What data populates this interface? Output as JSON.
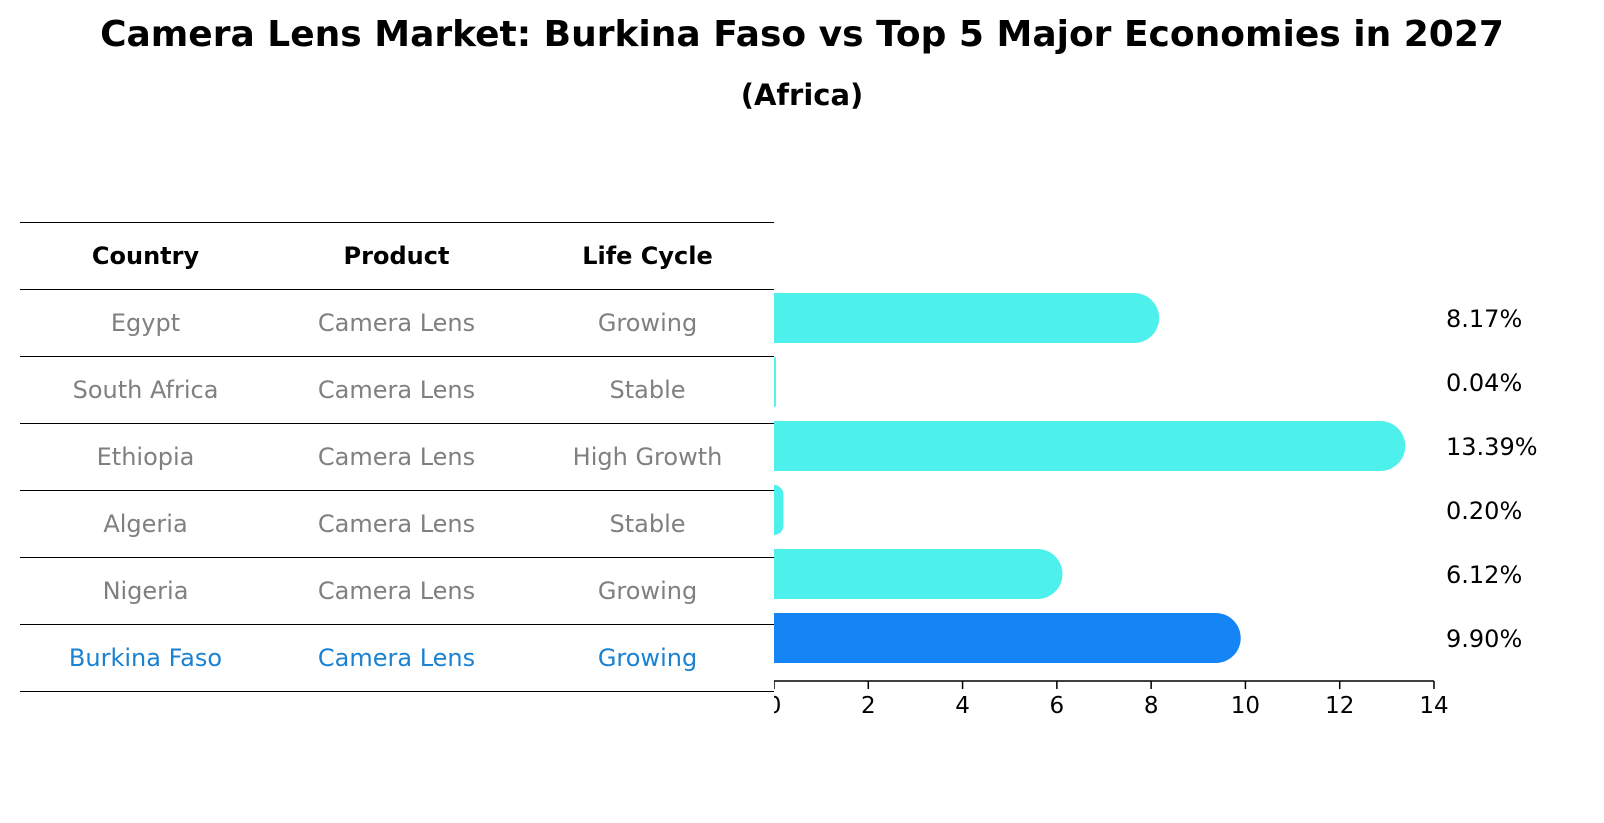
{
  "title": "Camera Lens Market: Burkina Faso vs Top 5 Major Economies in 2027",
  "subtitle": "(Africa)",
  "colors": {
    "bar": "#4ef0ec",
    "highlight": "#1584f5",
    "highlight_text": "#1a82d2",
    "muted_text": "#808080"
  },
  "table": {
    "headers": [
      "Country",
      "Product",
      "Life Cycle"
    ],
    "rows": [
      {
        "country": "Egypt",
        "product": "Camera Lens",
        "life_cycle": "Growing"
      },
      {
        "country": "South Africa",
        "product": "Camera Lens",
        "life_cycle": "Stable"
      },
      {
        "country": "Ethiopia",
        "product": "Camera Lens",
        "life_cycle": "High Growth"
      },
      {
        "country": "Algeria",
        "product": "Camera Lens",
        "life_cycle": "Stable"
      },
      {
        "country": "Nigeria",
        "product": "Camera Lens",
        "life_cycle": "Growing"
      },
      {
        "country": "Burkina Faso",
        "product": "Camera Lens",
        "life_cycle": "Growing",
        "highlight": true
      }
    ]
  },
  "chart_data": {
    "type": "bar",
    "orientation": "horizontal",
    "categories": [
      "Egypt",
      "South Africa",
      "Ethiopia",
      "Algeria",
      "Nigeria",
      "Burkina Faso"
    ],
    "values": [
      8.17,
      0.04,
      13.39,
      0.2,
      6.12,
      9.9
    ],
    "value_labels": [
      "8.17%",
      "0.04%",
      "13.39%",
      "0.20%",
      "6.12%",
      "9.90%"
    ],
    "highlight_index": 5,
    "xlim": [
      0,
      14
    ],
    "xticks": [
      0,
      2,
      4,
      6,
      8,
      10,
      12,
      14
    ],
    "grid": false
  }
}
